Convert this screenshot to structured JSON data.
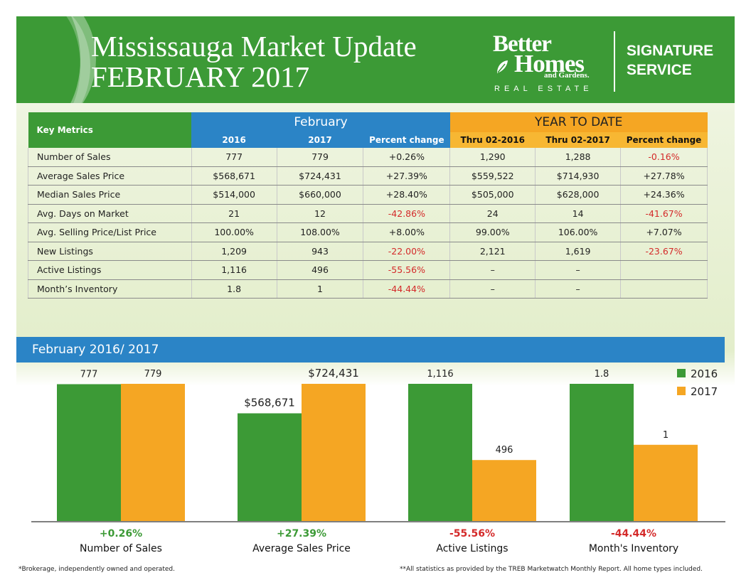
{
  "header": {
    "title_line1": "Mississauga Market Update",
    "title_line2": "FEBRUARY 2017",
    "logo_better": "Better",
    "logo_homes": "Homes",
    "logo_gardens": "and Gardens.",
    "logo_real_estate": "REAL ESTATE",
    "signature_line1": "SIGNATURE",
    "signature_line2": "SERVICE"
  },
  "table": {
    "key_header": "Key Metrics",
    "group_february": "February",
    "group_ytd": "YEAR TO DATE",
    "subheaders": [
      "2016",
      "2017",
      "Percent change",
      "Thru 02-2016",
      "Thru 02-2017",
      "Percent change"
    ],
    "rows": [
      {
        "label": "Number of Sales",
        "cells": [
          "777",
          "779",
          "+0.26%",
          "1,290",
          "1,288",
          "-0.16%"
        ]
      },
      {
        "label": "Average Sales Price",
        "cells": [
          "$568,671",
          "$724,431",
          "+27.39%",
          "$559,522",
          "$714,930",
          "+27.78%"
        ]
      },
      {
        "label": "Median Sales Price",
        "cells": [
          "$514,000",
          "$660,000",
          "+28.40%",
          "$505,000",
          "$628,000",
          "+24.36%"
        ]
      },
      {
        "label": "Avg. Days on Market",
        "cells": [
          "21",
          "12",
          "-42.86%",
          "24",
          "14",
          "-41.67%"
        ]
      },
      {
        "label": "Avg. Selling Price/List Price",
        "cells": [
          "100.00%",
          "108.00%",
          "+8.00%",
          "99.00%",
          "106.00%",
          "+7.07%"
        ]
      },
      {
        "label": "New Listings",
        "cells": [
          "1,209",
          "943",
          "-22.00%",
          "2,121",
          "1,619",
          "-23.67%"
        ]
      },
      {
        "label": "Active Listings",
        "cells": [
          "1,116",
          "496",
          "-55.56%",
          "–",
          "–",
          ""
        ]
      },
      {
        "label": "Month’s Inventory",
        "cells": [
          "1.8",
          "1",
          "-44.44%",
          "–",
          "–",
          ""
        ]
      }
    ]
  },
  "chart_section_title": "February 2016/ 2017",
  "colors": {
    "green": "#3c9a36",
    "orange": "#f5a623",
    "blue": "#2b84c6",
    "negative": "#d42a2a",
    "positive": "#3c9a36"
  },
  "chart_data": {
    "type": "bar",
    "title": "February 2016/ 2017",
    "series_names": [
      "2016",
      "2017"
    ],
    "legend_position": "top-right",
    "groups": [
      {
        "category": "Number of Sales",
        "values": [
          777,
          779
        ],
        "labels": [
          "777",
          "779"
        ],
        "change": "+0.26%"
      },
      {
        "category": "Average Sales Price",
        "values": [
          568671,
          724431
        ],
        "labels": [
          "$568,671",
          "$724,431"
        ],
        "change": "+27.39%"
      },
      {
        "category": "Active Listings",
        "values": [
          1116,
          496
        ],
        "labels": [
          "1,116",
          "496"
        ],
        "change": "-55.56%"
      },
      {
        "category": "Month's Inventory",
        "values": [
          1.8,
          1
        ],
        "labels": [
          "1.8",
          "1"
        ],
        "change": "-44.44%"
      }
    ]
  },
  "footer": {
    "left": "*Brokerage, independently owned and operated.",
    "right": "**All statistics as provided by the TREB Marketwatch Monthly Report. All home types included."
  }
}
